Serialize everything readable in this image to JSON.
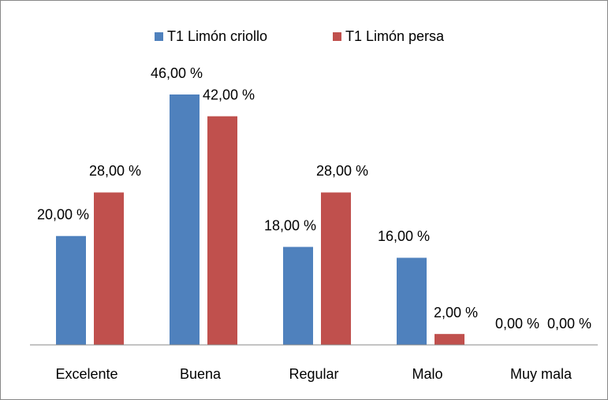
{
  "chart_data": {
    "type": "bar",
    "categories": [
      "Excelente",
      "Buena",
      "Regular",
      "Malo",
      "Muy mala"
    ],
    "series": [
      {
        "name": "T1 Limón criollo",
        "color": "#4f81bd",
        "values": [
          20,
          46,
          18,
          16,
          0
        ],
        "value_labels": [
          "20,00 %",
          "46,00 %",
          "18,00 %",
          "16,00 %",
          "0,00 %"
        ]
      },
      {
        "name": "T1 Limón persa",
        "color": "#c0504d",
        "values": [
          28,
          42,
          28,
          2,
          0
        ],
        "value_labels": [
          "28,00 %",
          "42,00 %",
          "28,00 %",
          "2,00 %",
          "0,00 %"
        ]
      }
    ],
    "legend": "top"
  }
}
